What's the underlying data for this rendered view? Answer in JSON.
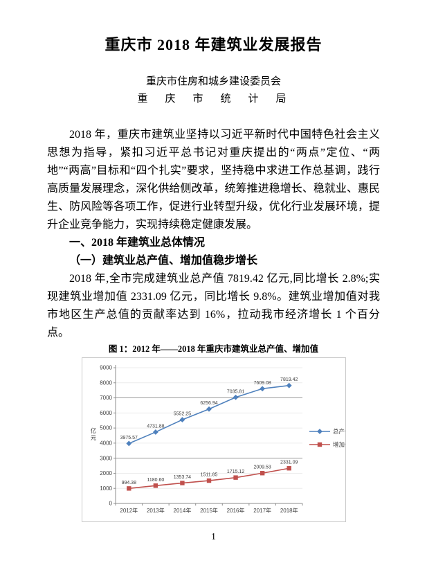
{
  "doc": {
    "title": "重庆市 2018 年建筑业发展报告",
    "org_lines": [
      "重庆市住房和城乡建设委员会",
      "重　庆　市　统　计　局"
    ],
    "intro_paragraph": "2018 年，重庆市建筑业坚持以习近平新时代中国特色社会主义思想为指导，紧扣习近平总书记对重庆提出的“两点”定位、“两地”“两高”目标和“四个扎实”要求，坚持稳中求进工作总基调，践行高质量发展理念，深化供给侧改革，统筹推进稳增长、稳就业、惠民生、防风险等各项工作，促进行业转型升级，优化行业发展环境，提升企业竞争能力，实现持续稳定健康发展。",
    "section1_heading": "一、2018 年建筑业总体情况",
    "section1_sub_heading": "（一）建筑业总产值、增加值稳步增长",
    "section1_paragraph": "2018 年,全市完成建筑业总产值 7819.42 亿元,同比增长 2.8%;实现建筑业增加值 2331.09 亿元，同比增长 9.8%。建筑业增加值对我市地区生产总值的贡献率达到 16%，拉动我市经济增长 1 个百分点。",
    "figure1_caption": "图 1：2012 年——2018 年重庆市建筑业总产值、增加值",
    "page_number": "1"
  },
  "chart_data": {
    "type": "line",
    "title": "2012年——2018年重庆市建筑业总产值、增加值",
    "categories": [
      "2012年",
      "2013年",
      "2014年",
      "2015年",
      "2016年",
      "2017年",
      "2018年"
    ],
    "series": [
      {
        "name": "总产值",
        "color": "#4f81bd",
        "marker": "diamond",
        "values": [
          3975.57,
          4731.88,
          5552.25,
          6256.94,
          7035.81,
          7609.08,
          7819.42
        ]
      },
      {
        "name": "增加值",
        "color": "#c0504d",
        "marker": "square",
        "values": [
          994.38,
          1180.6,
          1353.74,
          1511.85,
          1715.12,
          2009.53,
          2331.09
        ]
      }
    ],
    "xlabel": "",
    "ylabel": "亿元",
    "ylim": [
      0,
      9000
    ],
    "yticks": [
      0,
      1000,
      2000,
      3000,
      4000,
      5000,
      6000,
      7000,
      8000,
      9000
    ],
    "emphasized_gridlines": [
      3000,
      7000
    ],
    "grid": true,
    "legend_position": "right",
    "data_labels": true
  }
}
